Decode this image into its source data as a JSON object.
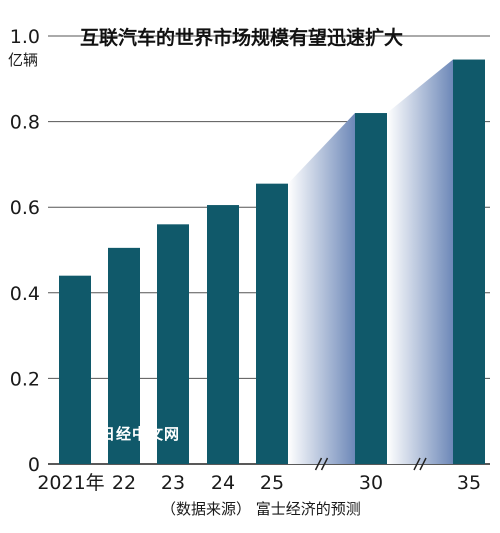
{
  "chart_data": {
    "type": "bar",
    "title": "互联汽车的世界市场规模有望迅速扩大",
    "ylabel": "亿辆",
    "ylim": [
      0,
      1.0
    ],
    "yticks": [
      "0",
      "0.2",
      "0.4",
      "0.6",
      "0.8",
      "1.0"
    ],
    "categories": [
      "2021年",
      "22",
      "23",
      "24",
      "25",
      "30",
      "35"
    ],
    "values": [
      0.44,
      0.505,
      0.56,
      0.605,
      0.655,
      0.82,
      0.945
    ],
    "forecast_from": "25",
    "axis_breaks_after": [
      "25",
      "30"
    ],
    "source": "（数据来源） 富士经济的预测",
    "watermark": "日经中文网",
    "colors": {
      "bar": "#10596a",
      "gridline": "#555555",
      "gradient_dark": "#6d88b8",
      "gradient_light": "#ffffff"
    }
  }
}
